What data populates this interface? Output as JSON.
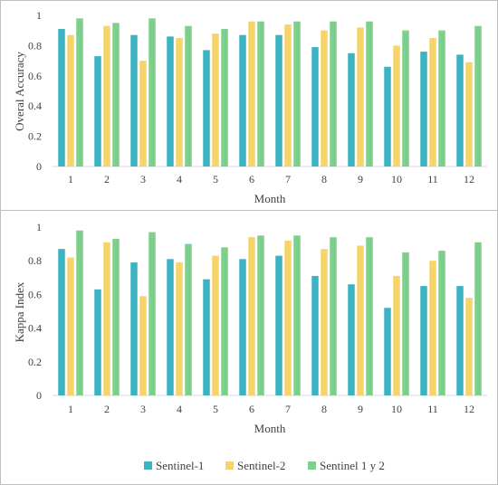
{
  "colors": {
    "Sentinel-1": "#3bb3c3",
    "Sentinel-2": "#f6d46b",
    "Sentinel 1 y 2": "#7fcf8c"
  },
  "legend": {
    "position": "bottom",
    "items": [
      "Sentinel-1",
      "Sentinel-2",
      "Sentinel 1 y 2"
    ]
  },
  "chart_data": [
    {
      "type": "bar",
      "title": "",
      "xlabel": "Month",
      "ylabel": "Overal Accuracy",
      "ylim": [
        0,
        1
      ],
      "yticks": [
        "0",
        "0.2",
        "0.4",
        "0.6",
        "0.8",
        "1"
      ],
      "grid": false,
      "categories": [
        "1",
        "2",
        "3",
        "4",
        "5",
        "6",
        "7",
        "8",
        "9",
        "10",
        "11",
        "12"
      ],
      "series": [
        {
          "name": "Sentinel-1",
          "values": [
            0.91,
            0.73,
            0.87,
            0.86,
            0.77,
            0.87,
            0.87,
            0.79,
            0.75,
            0.66,
            0.76,
            0.74
          ]
        },
        {
          "name": "Sentinel-2",
          "values": [
            0.87,
            0.93,
            0.7,
            0.85,
            0.88,
            0.96,
            0.94,
            0.9,
            0.92,
            0.8,
            0.85,
            0.69
          ]
        },
        {
          "name": "Sentinel 1 y 2",
          "values": [
            0.98,
            0.95,
            0.98,
            0.93,
            0.91,
            0.96,
            0.96,
            0.96,
            0.96,
            0.9,
            0.9,
            0.93
          ]
        }
      ]
    },
    {
      "type": "bar",
      "title": "",
      "xlabel": "Month",
      "ylabel": "Kappa Index",
      "ylim": [
        0,
        1
      ],
      "yticks": [
        "0",
        "0.2",
        "0.4",
        "0.6",
        "0.8",
        "1"
      ],
      "grid": false,
      "categories": [
        "1",
        "2",
        "3",
        "4",
        "5",
        "6",
        "7",
        "8",
        "9",
        "10",
        "11",
        "12"
      ],
      "series": [
        {
          "name": "Sentinel-1",
          "values": [
            0.87,
            0.63,
            0.79,
            0.81,
            0.69,
            0.81,
            0.83,
            0.71,
            0.66,
            0.52,
            0.65,
            0.65
          ]
        },
        {
          "name": "Sentinel-2",
          "values": [
            0.82,
            0.91,
            0.59,
            0.79,
            0.83,
            0.94,
            0.92,
            0.87,
            0.89,
            0.71,
            0.8,
            0.58
          ]
        },
        {
          "name": "Sentinel 1 y 2",
          "values": [
            0.98,
            0.93,
            0.97,
            0.9,
            0.88,
            0.95,
            0.95,
            0.94,
            0.94,
            0.85,
            0.86,
            0.91
          ]
        }
      ]
    }
  ]
}
